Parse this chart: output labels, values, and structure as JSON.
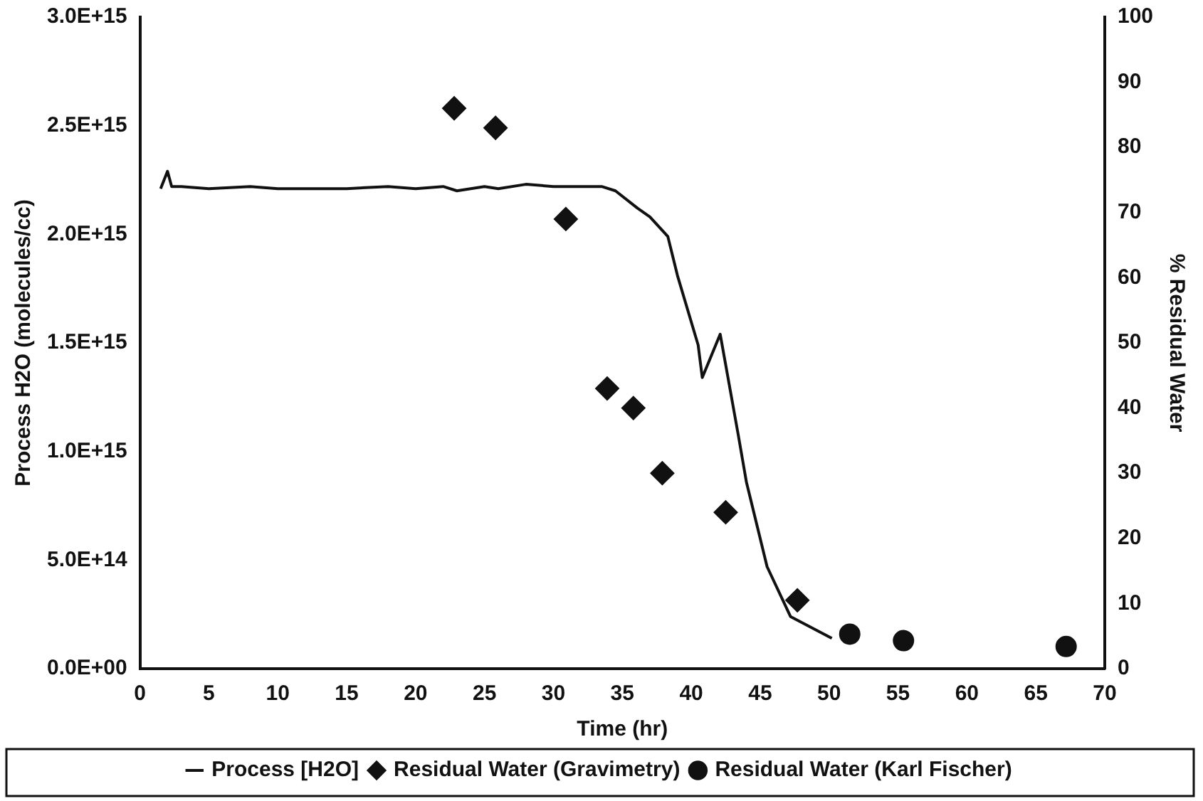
{
  "chart_data": {
    "type": "line",
    "xlabel": "Time (hr)",
    "ylabel": "Process H2O (molecules/cc)",
    "y2label": "% Residual Water",
    "xlim": [
      0,
      70
    ],
    "xticks": [
      0,
      5,
      10,
      15,
      20,
      25,
      30,
      35,
      40,
      45,
      50,
      55,
      60,
      65,
      70
    ],
    "ylim": [
      0,
      3000000000000000.0
    ],
    "yticks": [
      {
        "value": 0,
        "label": "0.0E+00"
      },
      {
        "value": 500000000000000.0,
        "label": "5.0E+14"
      },
      {
        "value": 1000000000000000.0,
        "label": "1.0E+15"
      },
      {
        "value": 1500000000000000.0,
        "label": "1.5E+15"
      },
      {
        "value": 2000000000000000.0,
        "label": "2.0E+15"
      },
      {
        "value": 2500000000000000.0,
        "label": "2.5E+15"
      },
      {
        "value": 3000000000000000.0,
        "label": "3.0E+15"
      }
    ],
    "y2lim": [
      0,
      100
    ],
    "y2ticks": [
      0,
      10,
      20,
      30,
      40,
      50,
      60,
      70,
      80,
      90,
      100
    ],
    "grid": false,
    "legend": "bottom",
    "series": [
      {
        "name": "Process [H2O]",
        "type": "line",
        "color": "#111111",
        "marker": "none",
        "line_style": "solid",
        "x": [
          1.5,
          2.0,
          2.3,
          3,
          5,
          8,
          10,
          12,
          15,
          18,
          20,
          22,
          23,
          25,
          26,
          28,
          30,
          32,
          33.5,
          34.5,
          36.1,
          37.0,
          38.3,
          39.0,
          40.5,
          40.8,
          42.1,
          43.4,
          44.0,
          45.5,
          47.2,
          50.2
        ],
        "values": [
          2210000000000000.0,
          2290000000000000.0,
          2220000000000000.0,
          2220000000000000.0,
          2210000000000000.0,
          2220000000000000.0,
          2210000000000000.0,
          2210000000000000.0,
          2210000000000000.0,
          2220000000000000.0,
          2210000000000000.0,
          2220000000000000.0,
          2200000000000000.0,
          2220000000000000.0,
          2210000000000000.0,
          2230000000000000.0,
          2220000000000000.0,
          2220000000000000.0,
          2220000000000000.0,
          2200000000000000.0,
          2120000000000000.0,
          2080000000000000.0,
          1990000000000000.0,
          1810000000000000.0,
          1490000000000000.0,
          1340000000000000.0,
          1540000000000000.0,
          1080000000000000.0,
          860000000000000.0,
          470000000000000.0,
          240000000000000.0,
          140000000000000.0
        ]
      },
      {
        "name": "Residual Water (Gravimetry)",
        "type": "scatter",
        "axis": "y2",
        "color": "#111111",
        "marker": "diamond",
        "x": [
          22.8,
          25.8,
          30.9,
          33.9,
          35.8,
          37.9,
          42.5,
          47.7
        ],
        "values": [
          86,
          83,
          69,
          43,
          40,
          30,
          24,
          10.5
        ]
      },
      {
        "name": "Residual Water (Karl Fischer)",
        "type": "scatter",
        "axis": "y2",
        "color": "#111111",
        "marker": "circle",
        "x": [
          51.5,
          55.4,
          67.2
        ],
        "values": [
          5.3,
          4.3,
          3.4
        ]
      }
    ]
  }
}
